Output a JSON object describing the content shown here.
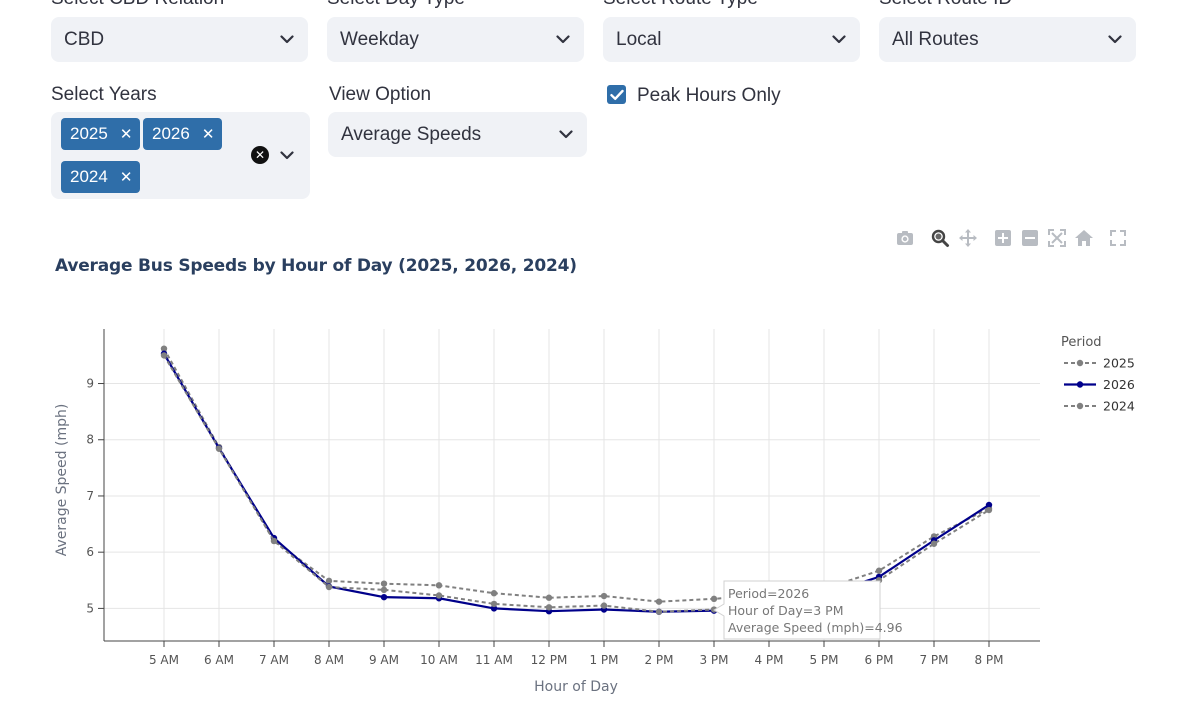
{
  "filters": {
    "cbd": {
      "label": "Select CBD Relation",
      "value": "CBD"
    },
    "day_type": {
      "label": "Select Day Type",
      "value": "Weekday"
    },
    "route_type": {
      "label": "Select Route Type",
      "value": "Local"
    },
    "route_id": {
      "label": "Select Route ID",
      "value": "All Routes"
    },
    "years": {
      "label": "Select Years",
      "tags": [
        "2025",
        "2026",
        "2024"
      ]
    },
    "view": {
      "label": "View Option",
      "value": "Average Speeds"
    },
    "peak": {
      "label": "Peak Hours Only",
      "checked": true
    }
  },
  "modebar_icons": [
    "camera-icon",
    "zoom-icon",
    "pan-icon",
    "zoom-in-icon",
    "zoom-out-icon",
    "autoscale-icon",
    "reset-axes-icon",
    "fullscreen-icon"
  ],
  "chart": {
    "title": "Average Bus Speeds by Hour of Day (2025, 2026, 2024)",
    "legend_title": "Period",
    "tooltip": {
      "line1": "Period=2026",
      "line2": "Hour of Day=3 PM",
      "line3": "Average Speed (mph)=4.96"
    }
  },
  "chart_data": {
    "type": "line",
    "title": "Average Bus Speeds by Hour of Day (2025, 2026, 2024)",
    "xlabel": "Hour of Day",
    "ylabel": "Average Speed (mph)",
    "ylim": [
      4.42,
      9.97
    ],
    "yticks": [
      5,
      6,
      7,
      8,
      9
    ],
    "grid": true,
    "legend_placement": "right",
    "categories": [
      "5 AM",
      "6 AM",
      "7 AM",
      "8 AM",
      "9 AM",
      "10 AM",
      "11 AM",
      "12 PM",
      "1 PM",
      "2 PM",
      "3 PM",
      "4 PM",
      "5 PM",
      "6 PM",
      "7 PM",
      "8 PM"
    ],
    "series": [
      {
        "name": "2025",
        "color": "#808080",
        "dash": true,
        "values": [
          9.62,
          7.87,
          6.2,
          5.49,
          5.44,
          5.41,
          5.27,
          5.19,
          5.22,
          5.12,
          5.17,
          5.25,
          5.35,
          5.67,
          6.28,
          6.78
        ]
      },
      {
        "name": "2026",
        "color": "#00008b",
        "dash": false,
        "values": [
          9.53,
          7.85,
          6.25,
          5.39,
          5.2,
          5.18,
          5.0,
          4.95,
          4.98,
          4.94,
          4.96,
          5.05,
          5.25,
          5.56,
          6.21,
          6.84
        ]
      },
      {
        "name": "2024",
        "color": "#808080",
        "dash": true,
        "values": [
          9.5,
          7.84,
          6.2,
          5.38,
          5.33,
          5.23,
          5.08,
          5.02,
          5.05,
          4.94,
          4.98,
          5.07,
          5.22,
          5.5,
          6.15,
          6.75
        ]
      }
    ]
  }
}
